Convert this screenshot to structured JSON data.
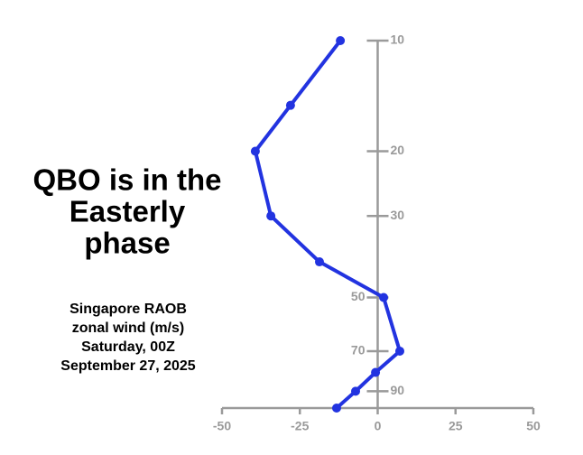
{
  "chart_data": {
    "type": "line",
    "title": [
      "QBO is in the",
      "Easterly",
      "phase"
    ],
    "subtitle": [
      "Singapore RAOB",
      "zonal wind (m/s)",
      "Saturday, 00Z",
      "September 27, 2025"
    ],
    "y": [
      10,
      15,
      20,
      30,
      40,
      50,
      70,
      80,
      90,
      100
    ],
    "series": [
      {
        "name": "zonal wind",
        "color": "#2233e0",
        "values": [
          -12,
          -28,
          -39.3,
          -34.3,
          -18.7,
          1.9,
          7.1,
          -0.7,
          -7.1,
          -13.2
        ]
      }
    ],
    "xlim": [
      -50,
      50
    ],
    "xticks": [
      -50,
      -25,
      0,
      25,
      50
    ],
    "ylim": [
      100,
      10
    ],
    "yticks": [
      10,
      20,
      30,
      50,
      70,
      90
    ],
    "ylog": true
  }
}
